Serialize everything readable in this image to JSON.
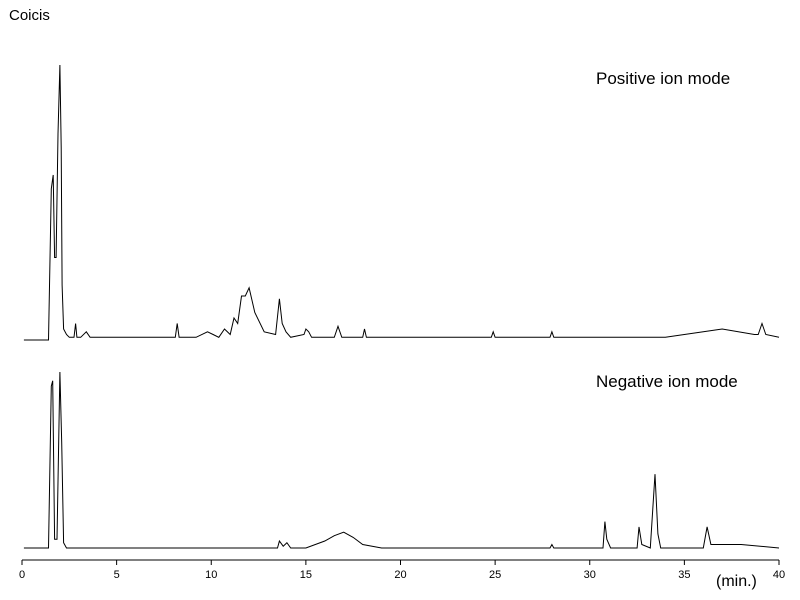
{
  "chart_data": {
    "type": "line",
    "title": "Coicis",
    "xlabel": "(min.)",
    "ylabel": "",
    "xlim": [
      0,
      40
    ],
    "x_ticks": [
      0,
      5,
      10,
      15,
      20,
      25,
      30,
      35,
      40
    ],
    "x_tick_labels": [
      "0",
      "5",
      "10",
      "15",
      "20",
      "25",
      "30",
      "35",
      "40"
    ],
    "grid": false,
    "y_axis_shown": false,
    "series": [
      {
        "name": "Positive ion mode",
        "color": "#000000",
        "x": [
          0.1,
          1.4,
          1.55,
          1.65,
          1.72,
          1.8,
          1.9,
          2.0,
          2.07,
          2.12,
          2.2,
          2.35,
          2.5,
          2.75,
          2.83,
          2.9,
          3.1,
          3.4,
          3.6,
          5.0,
          7.0,
          8.1,
          8.2,
          8.3,
          9.2,
          9.8,
          10.1,
          10.4,
          10.7,
          11.0,
          11.2,
          11.4,
          11.6,
          11.8,
          12.0,
          12.3,
          12.8,
          13.4,
          13.6,
          13.75,
          13.95,
          14.2,
          14.9,
          15.0,
          15.15,
          15.3,
          16.5,
          16.7,
          16.9,
          18.0,
          18.1,
          18.2,
          20.0,
          24.8,
          24.9,
          25.0,
          27.9,
          28.0,
          28.1,
          32.0,
          34.0,
          36.0,
          37.0,
          38.7,
          38.9,
          39.1,
          39.3,
          40.0
        ],
        "y": [
          0.0,
          0.0,
          0.55,
          0.6,
          0.3,
          0.3,
          0.75,
          1.0,
          0.7,
          0.2,
          0.04,
          0.02,
          0.01,
          0.01,
          0.06,
          0.01,
          0.01,
          0.03,
          0.01,
          0.01,
          0.01,
          0.01,
          0.06,
          0.01,
          0.01,
          0.03,
          0.02,
          0.01,
          0.04,
          0.02,
          0.08,
          0.06,
          0.16,
          0.16,
          0.19,
          0.1,
          0.03,
          0.02,
          0.15,
          0.06,
          0.03,
          0.01,
          0.02,
          0.04,
          0.03,
          0.01,
          0.01,
          0.05,
          0.01,
          0.01,
          0.04,
          0.01,
          0.01,
          0.01,
          0.03,
          0.01,
          0.01,
          0.03,
          0.01,
          0.01,
          0.01,
          0.03,
          0.04,
          0.02,
          0.02,
          0.06,
          0.02,
          0.01
        ]
      },
      {
        "name": "Negative ion mode",
        "color": "#000000",
        "x": [
          0.1,
          1.4,
          1.55,
          1.62,
          1.72,
          1.85,
          2.0,
          2.1,
          2.2,
          2.35,
          2.6,
          3.0,
          13.5,
          13.6,
          13.8,
          14.0,
          14.2,
          15.0,
          16.0,
          16.5,
          17.0,
          17.5,
          18.0,
          19.0,
          20.0,
          27.9,
          28.0,
          28.1,
          30.7,
          30.8,
          30.9,
          31.1,
          32.5,
          32.6,
          32.75,
          33.2,
          33.45,
          33.6,
          33.75,
          36.0,
          36.2,
          36.4,
          38.0,
          40.0
        ],
        "y": [
          0.0,
          0.0,
          0.92,
          0.95,
          0.05,
          0.05,
          1.0,
          0.6,
          0.03,
          0.0,
          0.0,
          0.0,
          0.0,
          0.04,
          0.01,
          0.03,
          0.0,
          0.0,
          0.04,
          0.07,
          0.09,
          0.06,
          0.02,
          0.0,
          0.0,
          0.0,
          0.02,
          0.0,
          0.0,
          0.15,
          0.05,
          0.0,
          0.0,
          0.12,
          0.02,
          0.0,
          0.42,
          0.08,
          0.0,
          0.0,
          0.12,
          0.02,
          0.02,
          0.0
        ]
      }
    ]
  }
}
